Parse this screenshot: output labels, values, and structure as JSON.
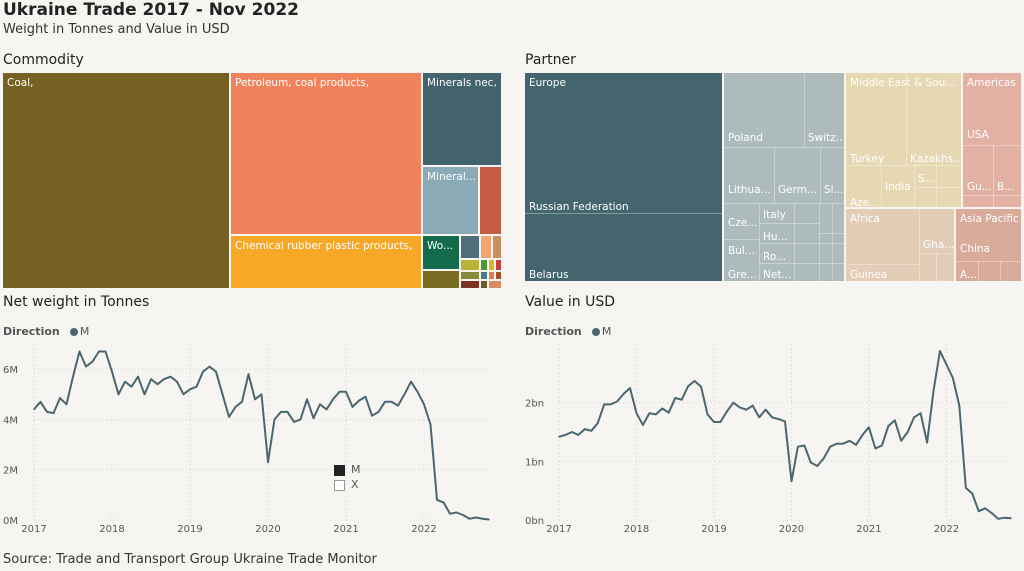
{
  "header": {
    "title": "Ukraine Trade 2017 - Nov 2022",
    "subtitle": "Weight in Tonnes and Value in USD"
  },
  "commodity": {
    "title": "Commodity",
    "tiles": [
      {
        "label": "Coal,",
        "color": "#756122"
      },
      {
        "label": "Petroleum, coal products,",
        "color": "#f0825c"
      },
      {
        "label": "Chemical rubber plastic products,",
        "color": "#f8a827"
      },
      {
        "label": "Minerals nec,",
        "color": "#43636d"
      },
      {
        "label": "Mineral...",
        "color": "#8aaab6"
      },
      {
        "label": "Wo...",
        "color": "#146b4c"
      }
    ]
  },
  "partner": {
    "title": "Partner",
    "regions": [
      {
        "label": "Europe",
        "color": "#44656e"
      },
      {
        "label": "Middle East & Sou...",
        "color": "#e6d8b3"
      },
      {
        "label": "Americas",
        "color": "#e2b1a4"
      },
      {
        "label": "Africa",
        "color": "#e4cdb6"
      },
      {
        "label": "Asia Pacific",
        "color": "#d9ab9b"
      }
    ],
    "countries": [
      "Russian Federation",
      "Belarus",
      "Poland",
      "Switz...",
      "Lithua...",
      "Germ...",
      "Sl...",
      "Cze...",
      "Italy",
      "Hu...",
      "Bul...",
      "Ro...",
      "Gre...",
      "Net...",
      "Turkey",
      "Kazakhs...",
      "India",
      "S...",
      "Aze...",
      "USA",
      "Gu...",
      "B...",
      "Gha...",
      "Guinea",
      "China",
      "A..."
    ]
  },
  "charts_text": {
    "weight_title": "Net weight in Tonnes",
    "value_title": "Value in USD",
    "direction_label": "Direction",
    "direction_series": "M",
    "inner_legend": [
      "M",
      "X"
    ]
  },
  "chart_data": [
    {
      "type": "line",
      "title": "Net weight in Tonnes",
      "color": "#4b6670",
      "x": [
        "2017-01",
        "2017-02",
        "2017-03",
        "2017-04",
        "2017-05",
        "2017-06",
        "2017-07",
        "2017-08",
        "2017-09",
        "2017-10",
        "2017-11",
        "2017-12",
        "2018-01",
        "2018-02",
        "2018-03",
        "2018-04",
        "2018-05",
        "2018-06",
        "2018-07",
        "2018-08",
        "2018-09",
        "2018-10",
        "2018-11",
        "2018-12",
        "2019-01",
        "2019-02",
        "2019-03",
        "2019-04",
        "2019-05",
        "2019-06",
        "2019-07",
        "2019-08",
        "2019-09",
        "2019-10",
        "2019-11",
        "2019-12",
        "2020-01",
        "2020-02",
        "2020-03",
        "2020-04",
        "2020-05",
        "2020-06",
        "2020-07",
        "2020-08",
        "2020-09",
        "2020-10",
        "2020-11",
        "2020-12",
        "2021-01",
        "2021-02",
        "2021-03",
        "2021-04",
        "2021-05",
        "2021-06",
        "2021-07",
        "2021-08",
        "2021-09",
        "2021-10",
        "2021-11",
        "2021-12",
        "2022-01",
        "2022-02",
        "2022-03",
        "2022-04",
        "2022-05",
        "2022-06",
        "2022-07",
        "2022-08",
        "2022-09",
        "2022-10",
        "2022-11"
      ],
      "series": [
        {
          "name": "M",
          "values": [
            4.4,
            4.7,
            4.3,
            4.25,
            4.85,
            4.6,
            5.7,
            6.7,
            6.1,
            6.3,
            6.7,
            6.7,
            5.9,
            5.0,
            5.5,
            5.3,
            5.7,
            5.0,
            5.6,
            5.4,
            5.6,
            5.7,
            5.5,
            5.0,
            5.2,
            5.3,
            5.9,
            6.1,
            5.9,
            5.0,
            4.1,
            4.5,
            4.7,
            5.8,
            4.8,
            5.0,
            2.3,
            4.0,
            4.3,
            4.3,
            3.9,
            4.0,
            4.8,
            4.05,
            4.6,
            4.4,
            4.8,
            5.1,
            5.1,
            4.5,
            4.75,
            4.9,
            4.15,
            4.3,
            4.7,
            4.7,
            4.55,
            5.0,
            5.5,
            5.1,
            4.6,
            3.8,
            0.8,
            0.7,
            0.25,
            0.3,
            0.2,
            0.05,
            0.1,
            0.05,
            0.02
          ]
        }
      ],
      "xticks": [
        "2017",
        "2018",
        "2019",
        "2020",
        "2021",
        "2022"
      ],
      "yticks": [
        "0M",
        "2M",
        "4M",
        "6M"
      ],
      "ylim": [
        0,
        7
      ]
    },
    {
      "type": "line",
      "title": "Value in USD",
      "color": "#4b6670",
      "x": [
        "2017-01",
        "2017-02",
        "2017-03",
        "2017-04",
        "2017-05",
        "2017-06",
        "2017-07",
        "2017-08",
        "2017-09",
        "2017-10",
        "2017-11",
        "2017-12",
        "2018-01",
        "2018-02",
        "2018-03",
        "2018-04",
        "2018-05",
        "2018-06",
        "2018-07",
        "2018-08",
        "2018-09",
        "2018-10",
        "2018-11",
        "2018-12",
        "2019-01",
        "2019-02",
        "2019-03",
        "2019-04",
        "2019-05",
        "2019-06",
        "2019-07",
        "2019-08",
        "2019-09",
        "2019-10",
        "2019-11",
        "2019-12",
        "2020-01",
        "2020-02",
        "2020-03",
        "2020-04",
        "2020-05",
        "2020-06",
        "2020-07",
        "2020-08",
        "2020-09",
        "2020-10",
        "2020-11",
        "2020-12",
        "2021-01",
        "2021-02",
        "2021-03",
        "2021-04",
        "2021-05",
        "2021-06",
        "2021-07",
        "2021-08",
        "2021-09",
        "2021-10",
        "2021-11",
        "2021-12",
        "2022-01",
        "2022-02",
        "2022-03",
        "2022-04",
        "2022-05",
        "2022-06",
        "2022-07",
        "2022-08",
        "2022-09",
        "2022-10",
        "2022-11"
      ],
      "series": [
        {
          "name": "M",
          "values": [
            1.42,
            1.45,
            1.5,
            1.45,
            1.55,
            1.52,
            1.65,
            1.97,
            1.97,
            2.02,
            2.15,
            2.25,
            1.82,
            1.62,
            1.82,
            1.8,
            1.9,
            1.83,
            2.08,
            2.05,
            2.28,
            2.37,
            2.27,
            1.8,
            1.67,
            1.67,
            1.85,
            2.0,
            1.92,
            1.88,
            1.95,
            1.75,
            1.88,
            1.75,
            1.72,
            1.68,
            0.66,
            1.25,
            1.27,
            0.98,
            0.92,
            1.05,
            1.25,
            1.3,
            1.3,
            1.35,
            1.28,
            1.45,
            1.58,
            1.22,
            1.27,
            1.6,
            1.7,
            1.35,
            1.5,
            1.75,
            1.82,
            1.32,
            2.2,
            2.88,
            2.65,
            2.42,
            1.95,
            0.55,
            0.45,
            0.15,
            0.2,
            0.12,
            0.02,
            0.04,
            0.03
          ]
        }
      ],
      "xticks": [
        "2017",
        "2018",
        "2019",
        "2020",
        "2021",
        "2022"
      ],
      "yticks": [
        "0bn",
        "1bn",
        "2bn"
      ],
      "ylim": [
        0,
        3
      ]
    }
  ],
  "footer": {
    "source": "Source: Trade and Transport Group Ukraine Trade Monitor"
  }
}
